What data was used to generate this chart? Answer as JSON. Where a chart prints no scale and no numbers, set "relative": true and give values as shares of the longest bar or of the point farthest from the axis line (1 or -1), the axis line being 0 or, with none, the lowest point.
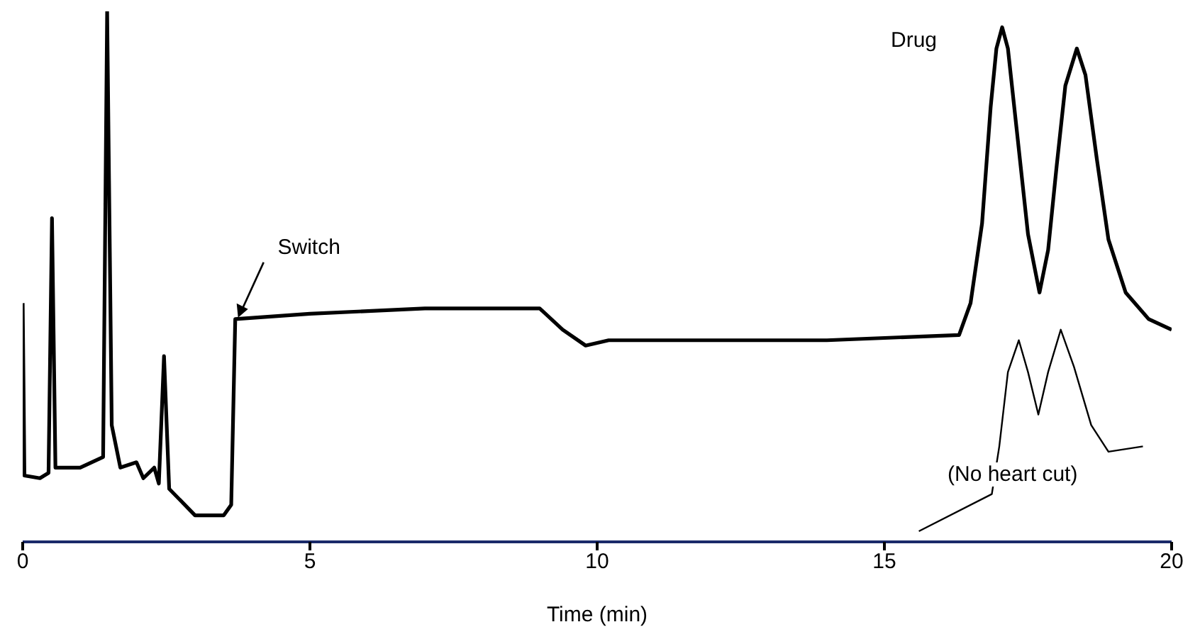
{
  "chart_data": {
    "type": "line",
    "relative": true,
    "xlabel": "Time (min)",
    "xlim": [
      0,
      20
    ],
    "xticks": [
      0,
      5,
      10,
      15,
      20
    ],
    "marker": "none",
    "series": [
      {
        "color": "#000000",
        "x": [
          0,
          0.03,
          0.3,
          0.45,
          0.51,
          0.57,
          1.0,
          1.4,
          1.47,
          1.55,
          1.7,
          1.98,
          2.1,
          2.29,
          2.37,
          2.46,
          2.55,
          3.0,
          3.5,
          3.63,
          3.7,
          5.0,
          7.0,
          9.0,
          9.4,
          9.8,
          10.2,
          12,
          14,
          16.3,
          16.5,
          16.7,
          16.85,
          16.95,
          17.05,
          17.15,
          17.3,
          17.5,
          17.7,
          17.85,
          18.0,
          18.15,
          18.35,
          18.5,
          18.7,
          18.9,
          19.2,
          19.6,
          20
        ],
        "values": [
          0.45,
          0.125,
          0.12,
          0.13,
          0.61,
          0.14,
          0.14,
          0.16,
          1,
          0.22,
          0.14,
          0.15,
          0.12,
          0.14,
          0.11,
          0.35,
          0.1,
          0.05,
          0.05,
          0.07,
          0.42,
          0.43,
          0.44,
          0.44,
          0.4,
          0.37,
          0.38,
          0.38,
          0.38,
          0.39,
          0.45,
          0.6,
          0.82,
          0.93,
          0.97,
          0.93,
          0.78,
          0.58,
          0.47,
          0.55,
          0.71,
          0.86,
          0.93,
          0.88,
          0.72,
          0.57,
          0.47,
          0.42,
          0.4
        ]
      },
      {
        "color": "#000000",
        "x": [
          15.6,
          16.87,
          17.0,
          17.15,
          17.34,
          17.5,
          17.68,
          17.85,
          18.07,
          18.3,
          18.6,
          18.9,
          19.5
        ],
        "values": [
          0.02,
          0.09,
          0.18,
          0.32,
          0.38,
          0.32,
          0.24,
          0.32,
          0.4,
          0.33,
          0.22,
          0.17,
          0.18
        ]
      }
    ],
    "annotations": [
      {
        "text": "Switch",
        "x": 3.7,
        "y": 0.42
      },
      "Drug",
      "(No heart cut)"
    ]
  }
}
